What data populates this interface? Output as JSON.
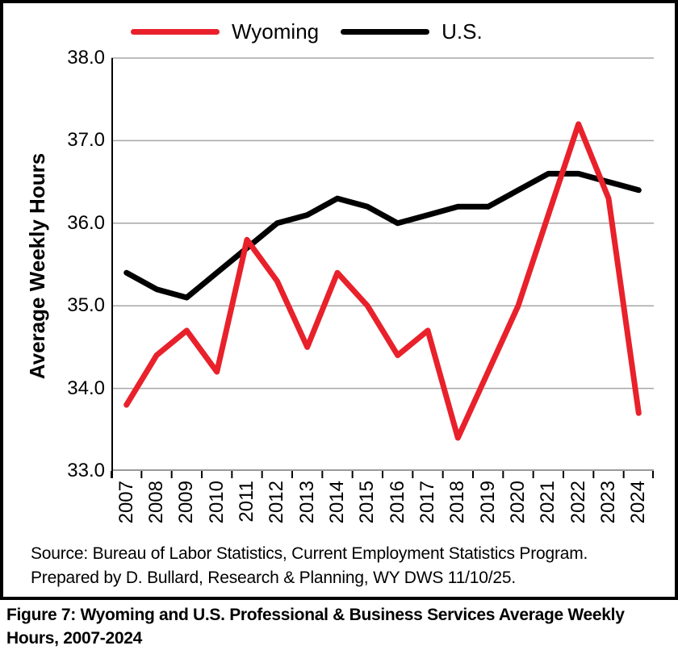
{
  "figure": {
    "legend": [
      {
        "label": "Wyoming",
        "color": "#e8212b"
      },
      {
        "label": "U.S.",
        "color": "#000000"
      }
    ],
    "y_axis_title": "Average Weekly Hours",
    "source_line1": "Source: Bureau of Labor Statistics, Current Employment Statistics Program.",
    "source_line2": "Prepared by D. Bullard, Research & Planning, WY DWS 11/10/25.",
    "caption": "Figure 7: Wyoming and U.S. Professional & Business Services Average Weekly Hours, 2007-2024"
  },
  "chart_data": {
    "type": "line",
    "title": "Figure 7: Wyoming and U.S. Professional & Business Services Average Weekly Hours, 2007-2024",
    "xlabel": "",
    "ylabel": "Average Weekly Hours",
    "categories": [
      "2007",
      "2008",
      "2009",
      "2010",
      "2011",
      "2012",
      "2013",
      "2014",
      "2015",
      "2016",
      "2017",
      "2018",
      "2019",
      "2020",
      "2021",
      "2022",
      "2023",
      "2024"
    ],
    "series": [
      {
        "name": "U.S.",
        "color": "#000000",
        "values": [
          35.4,
          35.2,
          35.1,
          35.4,
          35.7,
          36.0,
          36.1,
          36.3,
          36.2,
          36.0,
          36.1,
          36.2,
          36.2,
          36.4,
          36.6,
          36.6,
          36.5,
          36.4
        ]
      },
      {
        "name": "Wyoming",
        "color": "#e8212b",
        "values": [
          33.8,
          34.4,
          34.7,
          34.2,
          35.8,
          35.3,
          34.5,
          35.4,
          35.0,
          34.4,
          34.7,
          33.4,
          34.2,
          35.0,
          36.1,
          37.2,
          36.3,
          33.7
        ]
      }
    ],
    "ylim": [
      33.0,
      38.0
    ],
    "ytick_step": 1.0,
    "ytick_labels": [
      "38.0",
      "37.0",
      "36.0",
      "35.0",
      "34.0",
      "33.0"
    ],
    "grid": "horizontal",
    "gridline_color": "#a6a6a6",
    "axis_color": "#000000",
    "x_axis_line_color": "#999999",
    "legend_position": "top-left",
    "line_width": 7
  }
}
